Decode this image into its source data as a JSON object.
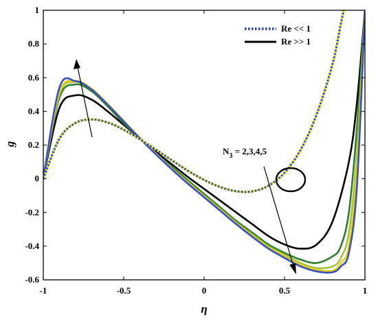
{
  "chart_data": {
    "type": "line",
    "xlabel": "η",
    "ylabel": "g",
    "xlim": [
      -1,
      1
    ],
    "ylim": [
      -0.6,
      1
    ],
    "xticks": [
      -1,
      -0.5,
      0,
      0.5,
      1
    ],
    "xtick_labels": [
      "-1",
      "-0.5",
      "0",
      "0.5",
      "1"
    ],
    "yticks": [
      -0.6,
      -0.4,
      -0.2,
      0,
      0.2,
      0.4,
      0.6,
      0.8,
      1
    ],
    "ytick_labels": [
      "-0.6",
      "-0.4",
      "-0.2",
      "0",
      "0.2",
      "0.4",
      "0.6",
      "0.8",
      "1"
    ],
    "grid": false,
    "legend_position": "top-right",
    "legend": [
      {
        "label": "Re << 1",
        "style": "dotted"
      },
      {
        "label": "Re >> 1",
        "style": "solid"
      }
    ],
    "annotation": {
      "text_main": "N",
      "text_sub": "3",
      "text_rest": " = 2,3,4,5"
    },
    "series": [
      {
        "group": "Re << 1",
        "color": "#2e4bb0",
        "x": [
          -1,
          -0.9,
          -0.8,
          -0.7,
          -0.6,
          -0.5,
          -0.4,
          -0.3,
          -0.2,
          -0.1,
          0,
          0.1,
          0.2,
          0.3,
          0.4,
          0.5,
          0.6,
          0.7,
          0.8,
          0.9,
          1
        ],
        "y": [
          0,
          0.238,
          0.331,
          0.352,
          0.334,
          0.291,
          0.235,
          0.173,
          0.109,
          0.047,
          -0.007,
          -0.049,
          -0.074,
          -0.075,
          -0.041,
          0.036,
          0.172,
          0.383,
          0.686,
          1.099,
          1
        ]
      },
      {
        "group": "Re << 1",
        "color": "#e5e028",
        "x": [
          -1,
          -0.9,
          -0.8,
          -0.7,
          -0.6,
          -0.5,
          -0.4,
          -0.3,
          -0.2,
          -0.1,
          0,
          0.1,
          0.2,
          0.3,
          0.4,
          0.5,
          0.6,
          0.7,
          0.8,
          0.9,
          1
        ],
        "y": [
          0,
          0.238,
          0.331,
          0.352,
          0.334,
          0.291,
          0.235,
          0.173,
          0.109,
          0.047,
          -0.007,
          -0.049,
          -0.074,
          -0.075,
          -0.041,
          0.036,
          0.172,
          0.383,
          0.686,
          1.099,
          1
        ]
      },
      {
        "group": "Re >> 1",
        "color": "#000000",
        "x": [
          -1,
          -0.9,
          -0.8,
          -0.7,
          -0.6,
          -0.5,
          -0.4,
          -0.3,
          -0.2,
          -0.1,
          0,
          0.1,
          0.2,
          0.3,
          0.4,
          0.5,
          0.6,
          0.7,
          0.8,
          0.9,
          0.95,
          1
        ],
        "y": [
          0,
          0.42,
          0.495,
          0.47,
          0.4,
          0.32,
          0.24,
          0.16,
          0.085,
          0.01,
          -0.06,
          -0.13,
          -0.2,
          -0.27,
          -0.34,
          -0.39,
          -0.415,
          -0.39,
          -0.25,
          0.1,
          0.45,
          1
        ]
      },
      {
        "group": "Re >> 1",
        "color": "#2e7d2e",
        "x": [
          -1,
          -0.9,
          -0.8,
          -0.7,
          -0.6,
          -0.5,
          -0.4,
          -0.3,
          -0.2,
          -0.1,
          0,
          0.1,
          0.2,
          0.3,
          0.4,
          0.5,
          0.6,
          0.7,
          0.8,
          0.85,
          0.9,
          0.95,
          1
        ],
        "y": [
          0,
          0.48,
          0.56,
          0.52,
          0.43,
          0.33,
          0.24,
          0.15,
          0.07,
          -0.01,
          -0.09,
          -0.17,
          -0.25,
          -0.32,
          -0.39,
          -0.44,
          -0.48,
          -0.5,
          -0.46,
          -0.4,
          -0.2,
          0.3,
          1
        ]
      },
      {
        "group": "Re >> 1",
        "color": "#a8c23a",
        "x": [
          -1,
          -0.9,
          -0.8,
          -0.7,
          -0.6,
          -0.5,
          -0.4,
          -0.3,
          -0.2,
          -0.1,
          0,
          0.1,
          0.2,
          0.3,
          0.4,
          0.5,
          0.6,
          0.7,
          0.8,
          0.85,
          0.9,
          0.95,
          1
        ],
        "y": [
          0,
          0.5,
          0.575,
          0.53,
          0.44,
          0.34,
          0.24,
          0.15,
          0.06,
          -0.02,
          -0.1,
          -0.18,
          -0.26,
          -0.33,
          -0.4,
          -0.45,
          -0.5,
          -0.53,
          -0.52,
          -0.47,
          -0.32,
          0.15,
          1
        ]
      },
      {
        "group": "Re >> 1",
        "color": "#e0d020",
        "x": [
          -1,
          -0.9,
          -0.8,
          -0.7,
          -0.6,
          -0.5,
          -0.4,
          -0.3,
          -0.2,
          -0.1,
          0,
          0.1,
          0.2,
          0.3,
          0.4,
          0.5,
          0.6,
          0.7,
          0.8,
          0.85,
          0.9,
          0.95,
          1
        ],
        "y": [
          0,
          0.51,
          0.58,
          0.535,
          0.445,
          0.345,
          0.245,
          0.15,
          0.06,
          -0.025,
          -0.105,
          -0.185,
          -0.265,
          -0.34,
          -0.41,
          -0.46,
          -0.51,
          -0.54,
          -0.545,
          -0.5,
          -0.4,
          0.05,
          1
        ]
      },
      {
        "group": "Re >> 1",
        "color": "#3a4fbf",
        "x": [
          -1,
          -0.9,
          -0.8,
          -0.7,
          -0.6,
          -0.5,
          -0.4,
          -0.3,
          -0.2,
          -0.1,
          0,
          0.1,
          0.2,
          0.3,
          0.4,
          0.5,
          0.6,
          0.7,
          0.8,
          0.85,
          0.9,
          0.95,
          1
        ],
        "y": [
          0,
          0.54,
          0.58,
          0.53,
          0.44,
          0.34,
          0.24,
          0.145,
          0.055,
          -0.03,
          -0.11,
          -0.19,
          -0.27,
          -0.345,
          -0.415,
          -0.47,
          -0.52,
          -0.55,
          -0.555,
          -0.52,
          -0.44,
          -0.05,
          1
        ]
      }
    ]
  }
}
